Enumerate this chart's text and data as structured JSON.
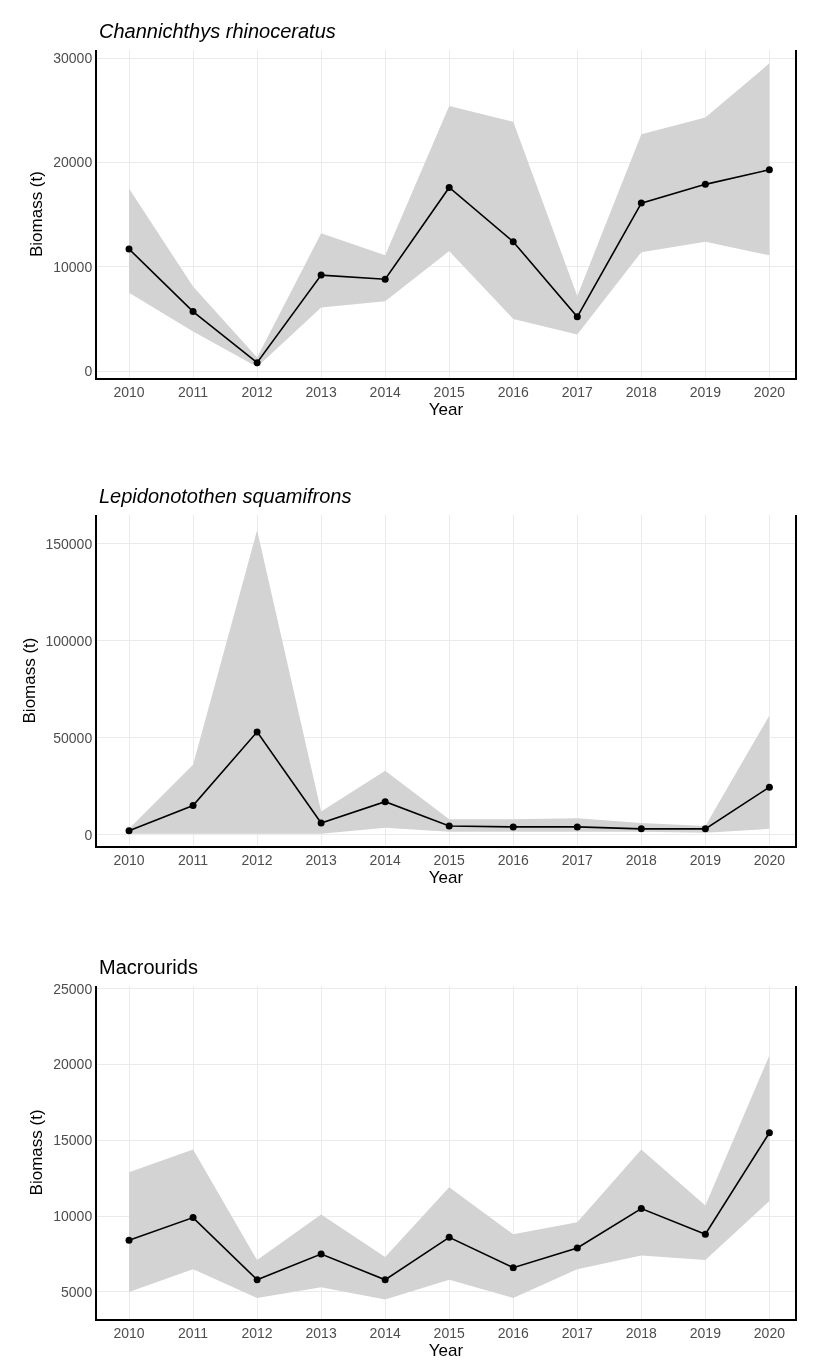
{
  "chart_data": [
    {
      "type": "line",
      "title": "Channichthys rhinoceratus",
      "xlabel": "Year",
      "ylabel": "Biomass (t)",
      "x": [
        2010,
        2011,
        2012,
        2013,
        2014,
        2015,
        2016,
        2017,
        2018,
        2019,
        2020
      ],
      "xlim": [
        2009.5,
        2020.4
      ],
      "xticks": [
        2010,
        2011,
        2012,
        2013,
        2014,
        2015,
        2016,
        2017,
        2018,
        2019,
        2020
      ],
      "ylim": [
        -700,
        30800
      ],
      "yticks": [
        0,
        10000,
        20000,
        30000
      ],
      "grid": true,
      "marker": "circle",
      "series": [
        {
          "color": "#000000",
          "values": [
            11700,
            5700,
            800,
            9200,
            8800,
            17600,
            12400,
            5200,
            16100,
            17900,
            19300
          ],
          "lower": [
            7500,
            3800,
            400,
            6100,
            6700,
            11500,
            5000,
            3500,
            11400,
            12400,
            11100
          ],
          "upper": [
            17500,
            8100,
            1300,
            13200,
            11100,
            25400,
            23900,
            7200,
            22700,
            24300,
            29500
          ]
        }
      ]
    },
    {
      "type": "line",
      "title": "Lepidonotothen squamifrons",
      "xlabel": "Year",
      "ylabel": "Biomass (t)",
      "x": [
        2010,
        2011,
        2012,
        2013,
        2014,
        2015,
        2016,
        2017,
        2018,
        2019,
        2020
      ],
      "xlim": [
        2009.5,
        2020.4
      ],
      "xticks": [
        2010,
        2011,
        2012,
        2013,
        2014,
        2015,
        2016,
        2017,
        2018,
        2019,
        2020
      ],
      "ylim": [
        -6000,
        165000
      ],
      "yticks": [
        0,
        50000,
        100000,
        150000
      ],
      "grid": true,
      "marker": "circle",
      "series": [
        {
          "color": "#000000",
          "values": [
            2000,
            15000,
            53000,
            6000,
            17000,
            4500,
            4000,
            4000,
            3000,
            3000,
            24500
          ],
          "lower": [
            500,
            500,
            500,
            500,
            3500,
            1500,
            1500,
            1500,
            1500,
            1000,
            3000
          ],
          "upper": [
            3000,
            36000,
            157000,
            12000,
            33000,
            8000,
            8000,
            8500,
            6000,
            4500,
            61500
          ]
        }
      ]
    },
    {
      "type": "line",
      "title": "Macrourids",
      "xlabel": "Year",
      "ylabel": "Biomass (t)",
      "x": [
        2010,
        2011,
        2012,
        2013,
        2014,
        2015,
        2016,
        2017,
        2018,
        2019,
        2020
      ],
      "xlim": [
        2009.5,
        2020.4
      ],
      "xticks": [
        2010,
        2011,
        2012,
        2013,
        2014,
        2015,
        2016,
        2017,
        2018,
        2019,
        2020
      ],
      "ylim": [
        3200,
        25200
      ],
      "yticks": [
        5000,
        10000,
        15000,
        20000,
        25000
      ],
      "grid": true,
      "marker": "circle",
      "series": [
        {
          "color": "#000000",
          "values": [
            8400,
            9900,
            5800,
            7500,
            5800,
            8600,
            6600,
            7900,
            10500,
            8800,
            15500
          ],
          "lower": [
            5000,
            6500,
            4600,
            5300,
            4500,
            5800,
            4600,
            6500,
            7400,
            7100,
            11000
          ],
          "upper": [
            12900,
            14400,
            7100,
            10100,
            7300,
            11900,
            8800,
            9600,
            14400,
            10700,
            20600
          ]
        }
      ]
    }
  ]
}
